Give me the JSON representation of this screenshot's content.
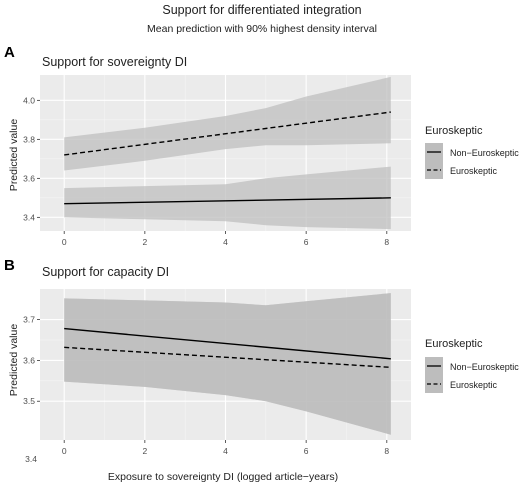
{
  "figure": {
    "title": "Support for differentiated integration",
    "subtitle": "Mean prediction with 90% highest density interval",
    "xlabel": "Exposure to sovereignty DI (logged article−years)"
  },
  "colors": {
    "panel_bg": "#ebebeb",
    "band_fill": "#bdbdbd",
    "line": "#000000",
    "text": "#222222",
    "axis_text": "#4d4d4d"
  },
  "chart_data": [
    {
      "type": "line",
      "panel_tag": "A",
      "title": "Support for sovereignty DI",
      "xlabel": "",
      "ylabel": "Predicted value",
      "xlim": [
        -0.6,
        8.6
      ],
      "ylim": [
        3.33,
        4.13
      ],
      "xticks": [
        0,
        2,
        4,
        6,
        8
      ],
      "yticks": [
        3.4,
        3.6,
        3.8,
        4.0
      ],
      "ytick_labels": [
        "3.4",
        "3.6",
        "3.8",
        "4.0"
      ],
      "grid": true,
      "legend": {
        "title": "Euroskeptic",
        "position": "right",
        "entries": [
          "Non−Euroskeptic",
          "Euroskeptic"
        ]
      },
      "series": [
        {
          "name": "Non−Euroskeptic",
          "style": "solid",
          "x": [
            0,
            8.1
          ],
          "y": [
            3.47,
            3.5
          ],
          "band": {
            "x": [
              0,
              2,
              4,
              5,
              6,
              8.1
            ],
            "lower": [
              3.4,
              3.39,
              3.38,
              3.36,
              3.35,
              3.34
            ],
            "upper": [
              3.55,
              3.56,
              3.57,
              3.6,
              3.62,
              3.66
            ]
          }
        },
        {
          "name": "Euroskeptic",
          "style": "dashed",
          "x": [
            0,
            8.1
          ],
          "y": [
            3.72,
            3.94
          ],
          "band": {
            "x": [
              0,
              2,
              4,
              5,
              6,
              8.1
            ],
            "lower": [
              3.64,
              3.69,
              3.75,
              3.77,
              3.77,
              3.78
            ],
            "upper": [
              3.81,
              3.86,
              3.92,
              3.96,
              4.02,
              4.12
            ]
          }
        }
      ]
    },
    {
      "type": "line",
      "panel_tag": "B",
      "title": "Support for capacity DI",
      "xlabel": "Exposure to sovereignty DI (logged article−years)",
      "ylabel": "Predicted value",
      "xlim": [
        -0.6,
        8.6
      ],
      "ylim": [
        3.405,
        3.775
      ],
      "xticks": [
        0,
        2,
        4,
        6,
        8
      ],
      "yticks": [
        3.5,
        3.6,
        3.7
      ],
      "ytick_labels": [
        "3.5",
        "3.6",
        "3.7"
      ],
      "extra_label": "3.4",
      "grid": true,
      "legend": {
        "title": "Euroskeptic",
        "position": "right",
        "entries": [
          "Non−Euroskeptic",
          "Euroskeptic"
        ]
      },
      "series": [
        {
          "name": "Non−Euroskeptic",
          "style": "solid",
          "x": [
            0,
            8.1
          ],
          "y": [
            3.678,
            3.604
          ],
          "band": {
            "x": [
              0,
              2,
              4,
              5,
              6,
              8.1
            ],
            "lower": [
              3.548,
              3.535,
              3.515,
              3.5,
              3.475,
              3.418
            ],
            "upper": [
              3.752,
              3.747,
              3.742,
              3.735,
              3.745,
              3.765
            ]
          }
        },
        {
          "name": "Euroskeptic",
          "style": "dashed",
          "x": [
            0,
            8.1
          ],
          "y": [
            3.632,
            3.583
          ],
          "band": {
            "x": [
              0,
              2,
              4,
              5,
              6,
              8.1
            ],
            "lower": [
              3.548,
              3.535,
              3.515,
              3.5,
              3.475,
              3.418
            ],
            "upper": [
              3.752,
              3.747,
              3.742,
              3.735,
              3.745,
              3.765
            ]
          }
        }
      ]
    }
  ]
}
